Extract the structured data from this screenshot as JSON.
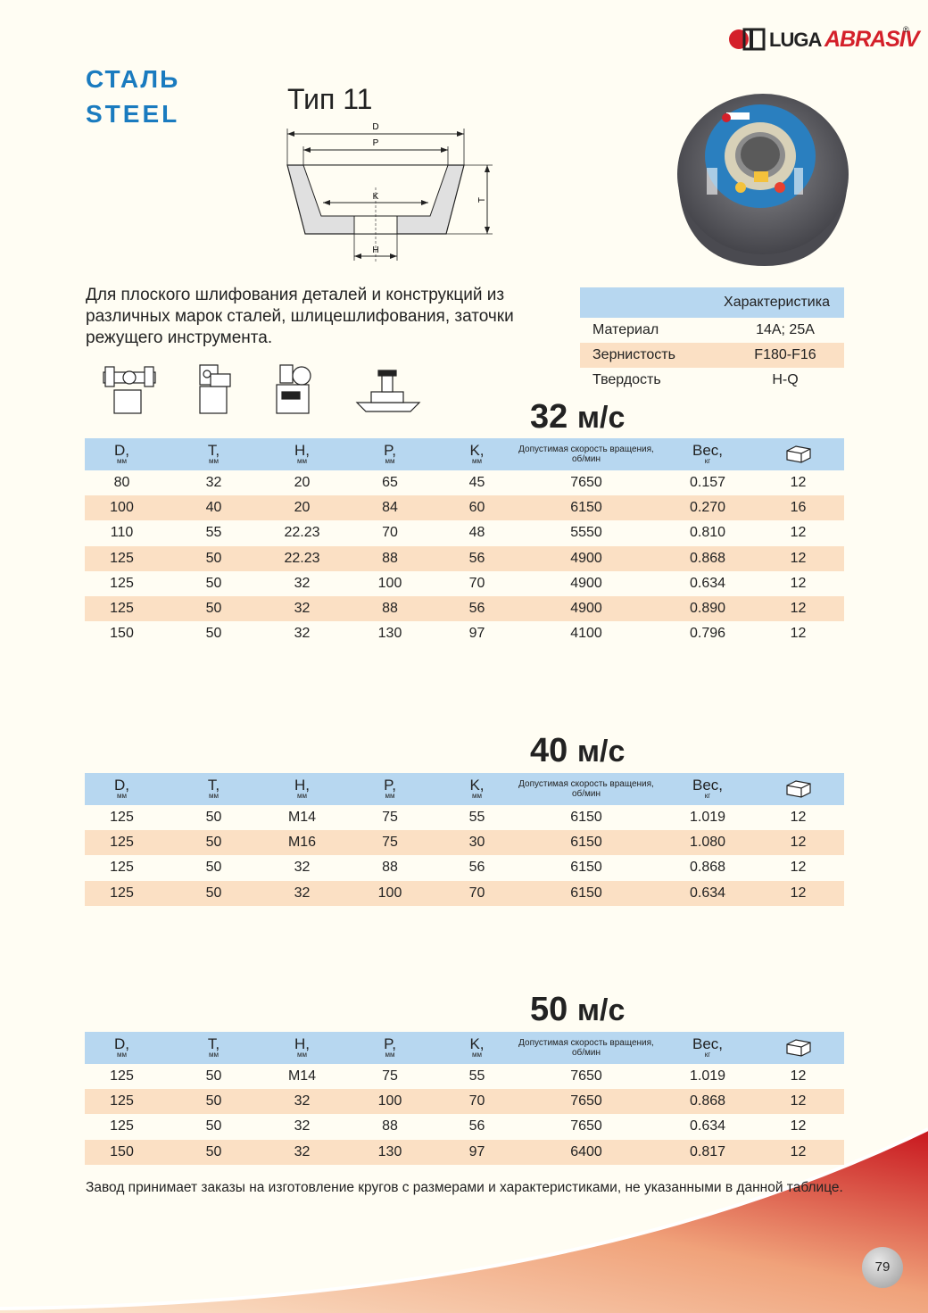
{
  "logo": {
    "prefix": "LUGA",
    "suffix": "ABRASIV",
    "reg": "®"
  },
  "title": {
    "ru": "СТАЛЬ",
    "en": "STEEL"
  },
  "type_label": "Тип 11",
  "diagram_labels": {
    "d": "D",
    "p": "P",
    "k": "K",
    "h": "H",
    "t": "T"
  },
  "description": "Для плоского шлифования деталей и конструкций из различных марок сталей, шлицешлифования, заточки режущего инструмента.",
  "characteristics": {
    "header": "Характеристика",
    "rows": [
      {
        "name": "Материал",
        "value": "14А; 25А"
      },
      {
        "name": "Зернистость",
        "value": "F180-F16"
      },
      {
        "name": "Твердость",
        "value": "H-Q"
      }
    ]
  },
  "columns": [
    {
      "label": "D,",
      "unit": "мм"
    },
    {
      "label": "T,",
      "unit": "мм"
    },
    {
      "label": "H,",
      "unit": "мм"
    },
    {
      "label": "P,",
      "unit": "мм"
    },
    {
      "label": "K,",
      "unit": "мм"
    },
    {
      "label": "Допустимая скорость вращения,",
      "unit": "об/мин"
    },
    {
      "label": "Вес,",
      "unit": "кг"
    },
    {
      "label": "box-icon",
      "unit": ""
    }
  ],
  "tables": [
    {
      "speed": "32",
      "speed_unit": "м/с",
      "rows": [
        [
          "80",
          "32",
          "20",
          "65",
          "45",
          "7650",
          "0.157",
          "12"
        ],
        [
          "100",
          "40",
          "20",
          "84",
          "60",
          "6150",
          "0.270",
          "16"
        ],
        [
          "110",
          "55",
          "22.23",
          "70",
          "48",
          "5550",
          "0.810",
          "12"
        ],
        [
          "125",
          "50",
          "22.23",
          "88",
          "56",
          "4900",
          "0.868",
          "12"
        ],
        [
          "125",
          "50",
          "32",
          "100",
          "70",
          "4900",
          "0.634",
          "12"
        ],
        [
          "125",
          "50",
          "32",
          "88",
          "56",
          "4900",
          "0.890",
          "12"
        ],
        [
          "150",
          "50",
          "32",
          "130",
          "97",
          "4100",
          "0.796",
          "12"
        ]
      ]
    },
    {
      "speed": "40",
      "speed_unit": "м/с",
      "rows": [
        [
          "125",
          "50",
          "M14",
          "75",
          "55",
          "6150",
          "1.019",
          "12"
        ],
        [
          "125",
          "50",
          "M16",
          "75",
          "30",
          "6150",
          "1.080",
          "12"
        ],
        [
          "125",
          "50",
          "32",
          "88",
          "56",
          "6150",
          "0.868",
          "12"
        ],
        [
          "125",
          "50",
          "32",
          "100",
          "70",
          "6150",
          "0.634",
          "12"
        ]
      ]
    },
    {
      "speed": "50",
      "speed_unit": "м/с",
      "rows": [
        [
          "125",
          "50",
          "M14",
          "75",
          "55",
          "7650",
          "1.019",
          "12"
        ],
        [
          "125",
          "50",
          "32",
          "100",
          "70",
          "7650",
          "0.868",
          "12"
        ],
        [
          "125",
          "50",
          "32",
          "88",
          "56",
          "7650",
          "0.634",
          "12"
        ],
        [
          "150",
          "50",
          "32",
          "130",
          "97",
          "6400",
          "0.817",
          "12"
        ]
      ]
    }
  ],
  "footer": "Завод принимает заказы на изготовление кругов с размерами и характеристиками, не указанными в данной таблице.",
  "page_number": "79",
  "colors": {
    "blue_title": "#1a7bbf",
    "header_bg": "#b7d7f0",
    "row_alt": "#fbe0c4",
    "red": "#d4202a"
  }
}
